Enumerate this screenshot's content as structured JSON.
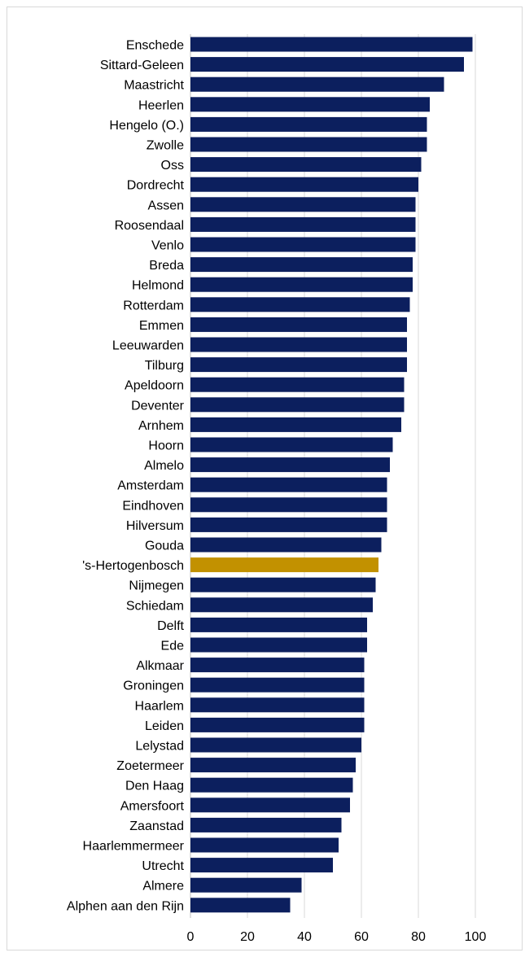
{
  "chart_data": {
    "type": "bar",
    "orientation": "horizontal",
    "categories": [
      "Enschede",
      "Sittard-Geleen",
      "Maastricht",
      "Heerlen",
      "Hengelo (O.)",
      "Zwolle",
      "Oss",
      "Dordrecht",
      "Assen",
      "Roosendaal",
      "Venlo",
      "Breda",
      "Helmond",
      "Rotterdam",
      "Emmen",
      "Leeuwarden",
      "Tilburg",
      "Apeldoorn",
      "Deventer",
      "Arnhem",
      "Hoorn",
      "Almelo",
      "Amsterdam",
      "Eindhoven",
      "Hilversum",
      "Gouda",
      "'s-Hertogenbosch",
      "Nijmegen",
      "Schiedam",
      "Delft",
      "Ede",
      "Alkmaar",
      "Groningen",
      "Haarlem",
      "Leiden",
      "Lelystad",
      "Zoetermeer",
      "Den Haag",
      "Amersfoort",
      "Zaanstad",
      "Haarlemmermeer",
      "Utrecht",
      "Almere",
      "Alphen aan den Rijn"
    ],
    "values": [
      99,
      96,
      89,
      84,
      83,
      83,
      81,
      80,
      79,
      79,
      79,
      78,
      78,
      77,
      76,
      76,
      76,
      75,
      75,
      74,
      71,
      70,
      69,
      69,
      69,
      67,
      66,
      65,
      64,
      62,
      62,
      61,
      61,
      61,
      61,
      60,
      58,
      57,
      56,
      53,
      52,
      50,
      39,
      35
    ],
    "highlight": "'s-Hertogenbosch",
    "xlim": [
      0,
      100
    ],
    "xticks": [
      "0",
      "20",
      "40",
      "60",
      "80",
      "100"
    ],
    "colors": {
      "bar": "#0c1f5e",
      "highlight": "#c29100",
      "grid": "#d9d9d9",
      "axis": "#bfbfbf"
    },
    "grid": true,
    "title": "",
    "xlabel": "",
    "ylabel": ""
  }
}
